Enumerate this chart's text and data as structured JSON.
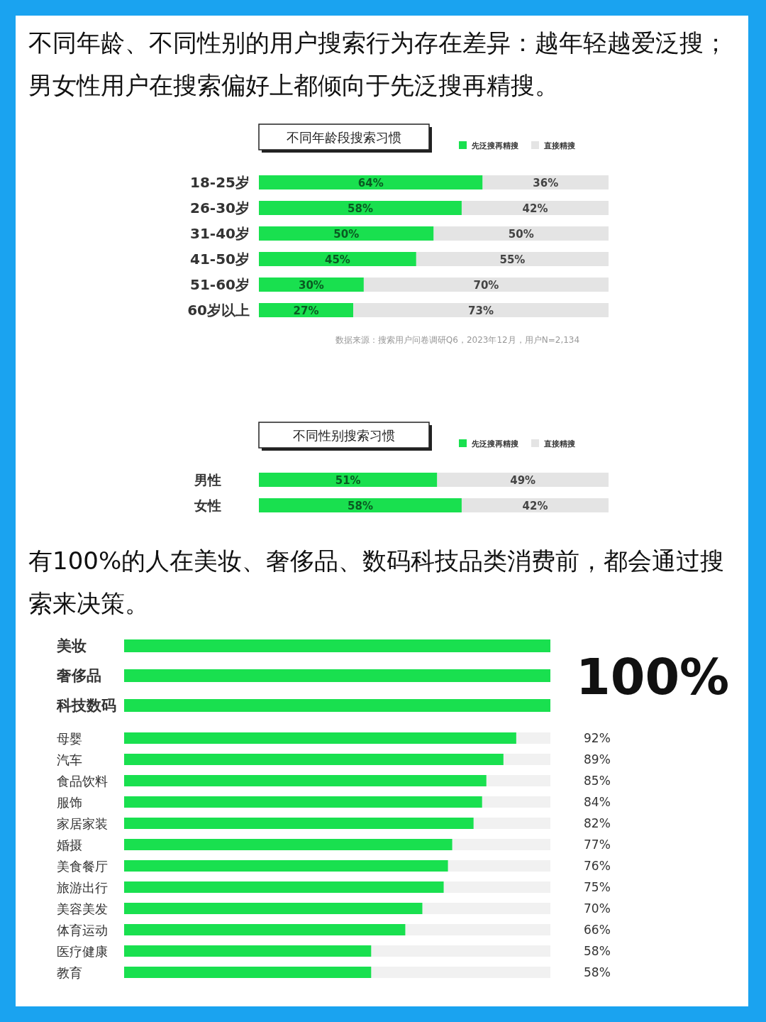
{
  "chart_data": [
    {
      "type": "bar",
      "orientation": "horizontal",
      "stacked": true,
      "title": "不同年龄、不同性别的用户搜索行为存在差异：越年轻越爱泛搜；男女性用户在搜索偏好上都倾向于先泛搜再精搜。",
      "subtitle": "不同年龄段搜索习惯",
      "categories": [
        "18-25岁",
        "26-30岁",
        "31-40岁",
        "41-50岁",
        "51-60岁",
        "60岁以上"
      ],
      "series": [
        {
          "name": "先泛搜再精搜",
          "color": "#19e04f",
          "values": [
            64,
            58,
            50,
            45,
            30,
            27
          ],
          "value_labels": [
            "64%",
            "58%",
            "50%",
            "45%",
            "30%",
            "27%"
          ]
        },
        {
          "name": "直接精搜",
          "color": "#e4e4e4",
          "values": [
            36,
            42,
            50,
            55,
            70,
            73
          ],
          "value_labels": [
            "36%",
            "42%",
            "50%",
            "55%",
            "70%",
            "73%"
          ]
        }
      ],
      "xlim": [
        0,
        100
      ],
      "tick_labels": "y",
      "legend": "top right",
      "annotations": [
        "数据来源：搜索用户问卷调研Q6，2023年12月，用户N=2,134"
      ]
    },
    {
      "type": "bar",
      "orientation": "horizontal",
      "stacked": true,
      "title": "不同性别搜索习惯",
      "categories": [
        "男性",
        "女性"
      ],
      "series": [
        {
          "name": "先泛搜再精搜",
          "color": "#19e04f",
          "values": [
            51,
            58
          ],
          "value_labels": [
            "51%",
            "58%"
          ]
        },
        {
          "name": "直接精搜",
          "color": "#e4e4e4",
          "values": [
            49,
            42
          ],
          "value_labels": [
            "49%",
            "42%"
          ]
        }
      ],
      "xlim": [
        0,
        100
      ],
      "tick_labels": "y",
      "legend": "top right"
    },
    {
      "type": "bar",
      "orientation": "horizontal",
      "stacked": true,
      "title": "有100%的人在美妆、奢侈品、数码科技品类消费前，都会通过搜索来决策。",
      "categories": [
        "美妆",
        "奢侈品",
        "科技数码",
        "母婴",
        "汽车",
        "食品饮料",
        "服饰",
        "家居家装",
        "婚摄",
        "美食餐厅",
        "旅游出行",
        "美容美发",
        "体育运动",
        "医疗健康",
        "教育"
      ],
      "series": [
        {
          "color": "#19e04f",
          "values": [
            100,
            100,
            100,
            92,
            89,
            85,
            84,
            82,
            77,
            76,
            75,
            70,
            66,
            58,
            58
          ],
          "value_labels": [
            null,
            null,
            null,
            "92%",
            "89%",
            "85%",
            "84%",
            "82%",
            "77%",
            "76%",
            "75%",
            "70%",
            "66%",
            "58%",
            "58%"
          ]
        },
        {
          "color": "#f1f1f1",
          "values": [
            0,
            0,
            0,
            8,
            11,
            15,
            16,
            18,
            23,
            24,
            25,
            30,
            34,
            42,
            42
          ]
        }
      ],
      "xlim": [
        0,
        100
      ],
      "tick_labels": "y",
      "annotations": [
        "100%"
      ]
    }
  ]
}
